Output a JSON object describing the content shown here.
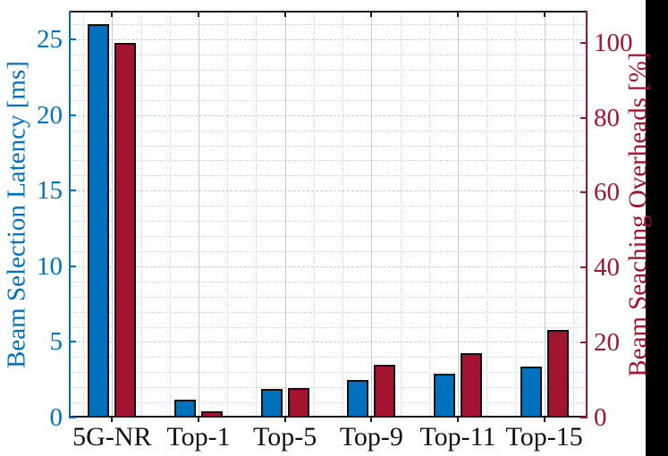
{
  "figure": {
    "background": "#ffffff",
    "right_strip_color": "#000000"
  },
  "chart_data": {
    "type": "bar",
    "title": "",
    "categories": [
      "5G-NR",
      "Top-1",
      "Top-5",
      "Top-9",
      "Top-11",
      "Top-15"
    ],
    "series": [
      {
        "name": "Beam Selection Latency",
        "axis": "left",
        "unit": "ms",
        "color": "#0072BD",
        "values": [
          26.0,
          1.2,
          1.9,
          2.5,
          2.9,
          3.4
        ]
      },
      {
        "name": "Beam Searching Overheads",
        "axis": "right",
        "unit": "%",
        "color": "#A2142F",
        "values": [
          100,
          1.6,
          7.8,
          14.1,
          17.2,
          23.4
        ]
      }
    ],
    "left_axis": {
      "label": "Beam Selection Latency [ms]",
      "color": "#0072BD",
      "ticks": [
        0,
        5,
        10,
        15,
        20,
        25
      ],
      "min": 0,
      "max_view": 26.9
    },
    "right_axis": {
      "label": "Beam Seaching Overheads [%]",
      "color": "#A2142F",
      "ticks": [
        0,
        20,
        40,
        60,
        80,
        100
      ],
      "min": 0,
      "max_view": 108.5
    },
    "x_axis": {
      "color": "#1a1a1a"
    },
    "grid": {
      "major_h_color": "#b9cfe8",
      "major_v_color": "#c9c9c9",
      "minor_color": "#cdd6e4",
      "minor_h_step_left_units": 1,
      "minor_v_per_category": 3,
      "grid_on": true
    },
    "legend": "none"
  }
}
